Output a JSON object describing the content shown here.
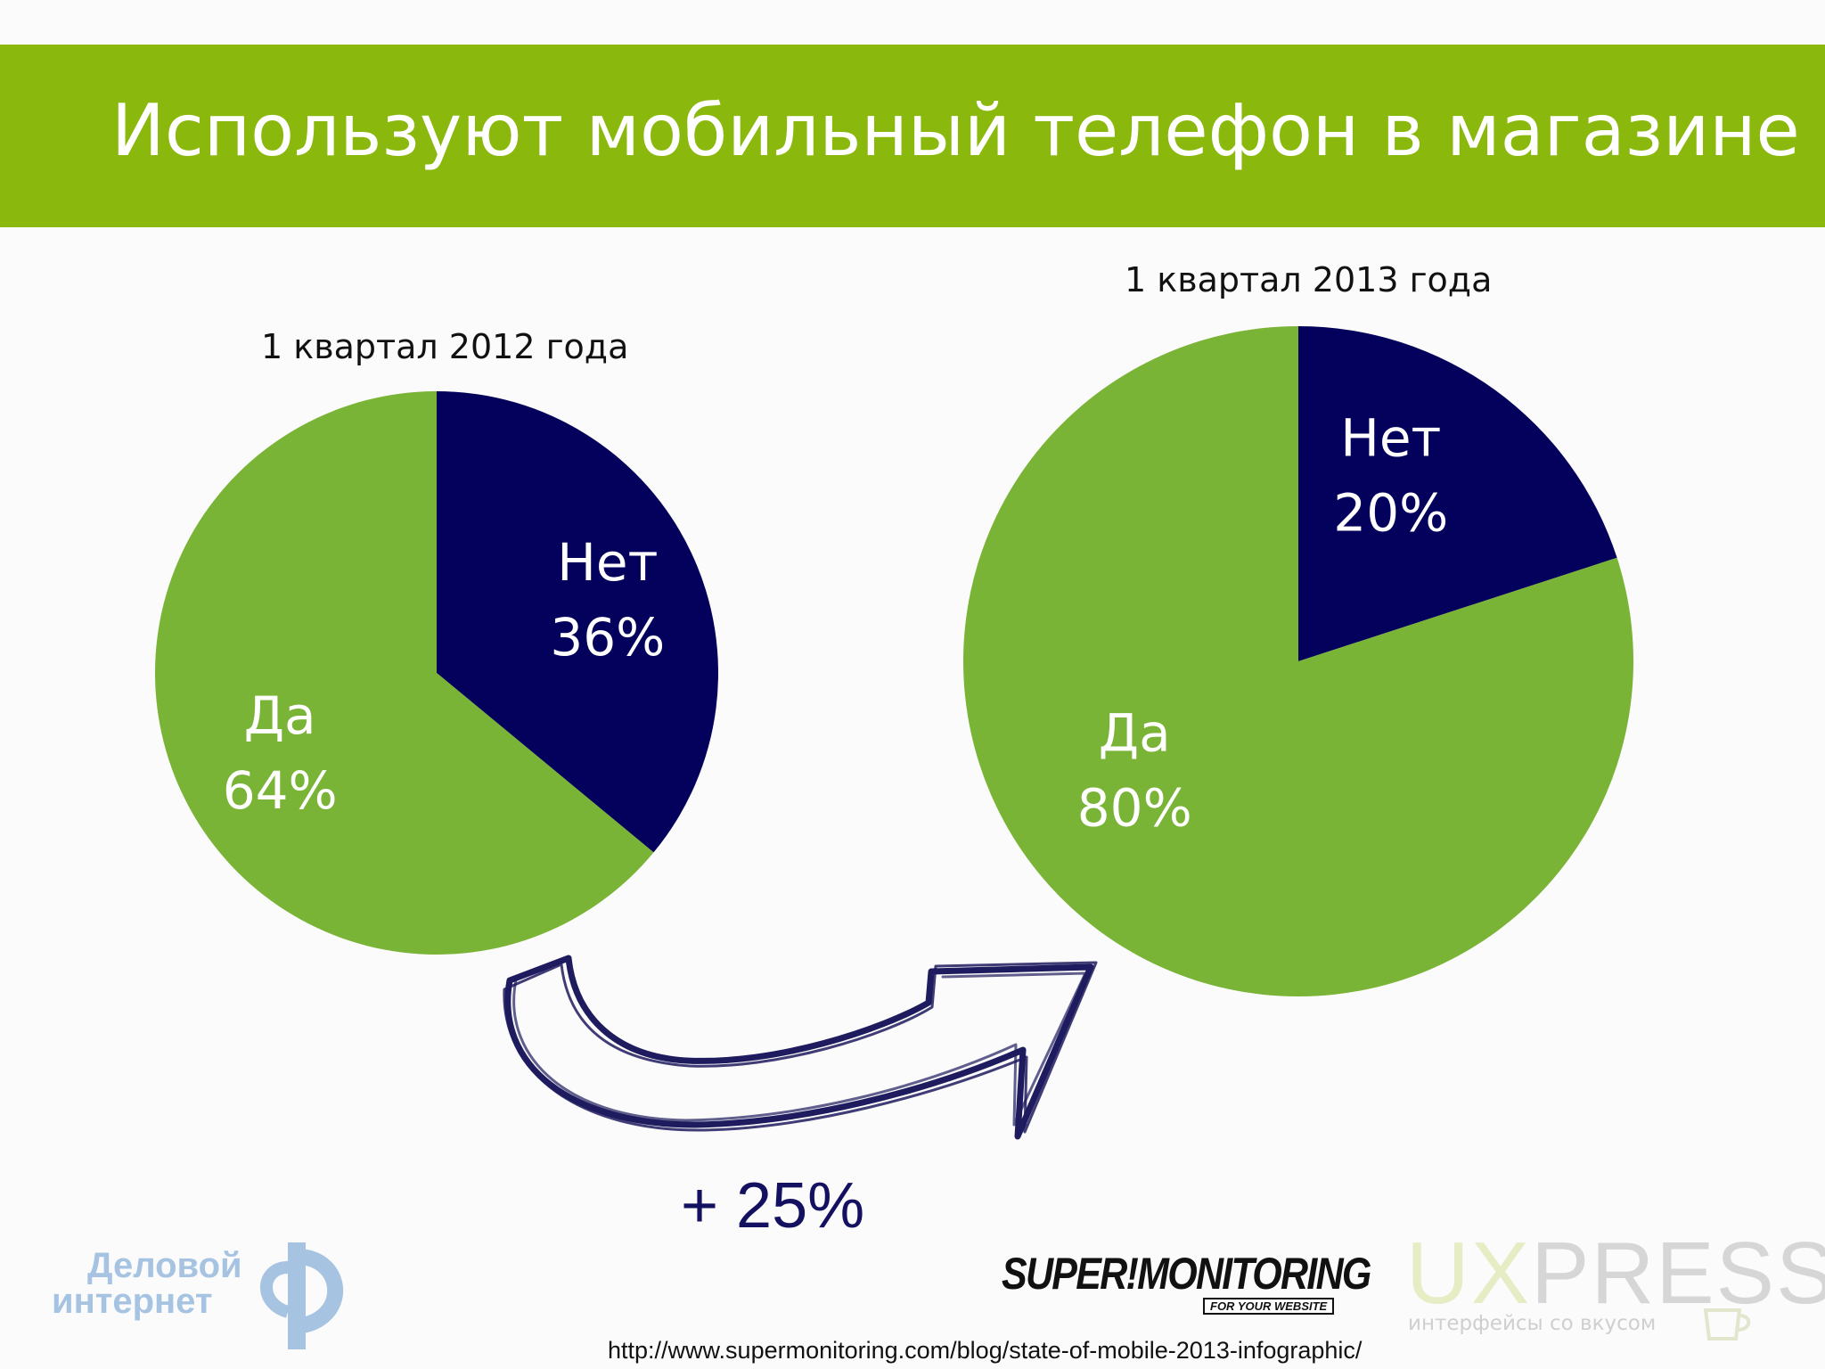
{
  "title": "Используют мобильный телефон в магазине",
  "colors": {
    "header": "#8ab80c",
    "yes": "#7ab436",
    "no": "#03015b",
    "arrow": "#1e1b5e"
  },
  "chart_data": [
    {
      "type": "pie",
      "title": "1 квартал 2012 года",
      "slices": [
        {
          "label": "Нет",
          "value": 36,
          "value_label": "36%",
          "color": "#03015b"
        },
        {
          "label": "Да",
          "value": 64,
          "value_label": "64%",
          "color": "#7ab436"
        }
      ]
    },
    {
      "type": "pie",
      "title": "1 квартал 2013 года",
      "slices": [
        {
          "label": "Нет",
          "value": 20,
          "value_label": "20%",
          "color": "#03015b"
        },
        {
          "label": "Да",
          "value": 80,
          "value_label": "80%",
          "color": "#7ab436"
        }
      ]
    }
  ],
  "growth": {
    "label": "+ 25%",
    "icon": "curved-arrow-icon"
  },
  "logos": {
    "delovoy": {
      "line1": "Деловой",
      "line2": "интернет"
    },
    "supermonitoring": {
      "name": "SUPER!MONITORING",
      "tagline": "FOR YOUR WEBSITE"
    },
    "uxpresso": {
      "name": "UXPRESSO",
      "tagline": "интерфейсы со вкусом"
    }
  },
  "source_url": "http://www.supermonitoring.com/blog/state-of-mobile-2013-infographic/"
}
